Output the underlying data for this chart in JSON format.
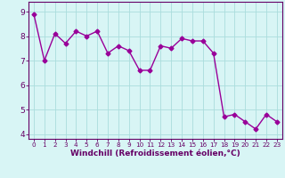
{
  "x": [
    0,
    1,
    2,
    3,
    4,
    5,
    6,
    7,
    8,
    9,
    10,
    11,
    12,
    13,
    14,
    15,
    16,
    17,
    18,
    19,
    20,
    21,
    22,
    23
  ],
  "y": [
    8.9,
    7.0,
    8.1,
    7.7,
    8.2,
    8.0,
    8.2,
    7.3,
    7.6,
    7.4,
    6.6,
    6.6,
    7.6,
    7.5,
    7.9,
    7.8,
    7.8,
    7.3,
    4.7,
    4.8,
    4.5,
    4.2,
    4.8,
    4.5
  ],
  "line_color": "#990099",
  "marker": "D",
  "marker_size": 2.5,
  "linewidth": 1.0,
  "xlabel": "Windchill (Refroidissement éolien,°C)",
  "xlabel_fontsize": 6.5,
  "bg_color": "#d8f5f5",
  "grid_color": "#aadddd",
  "tick_color": "#660066",
  "spine_color": "#660066",
  "ylim": [
    3.8,
    9.4
  ],
  "xlim": [
    -0.5,
    23.5
  ],
  "yticks": [
    4,
    5,
    6,
    7,
    8,
    9
  ],
  "xticks": [
    0,
    1,
    2,
    3,
    4,
    5,
    6,
    7,
    8,
    9,
    10,
    11,
    12,
    13,
    14,
    15,
    16,
    17,
    18,
    19,
    20,
    21,
    22,
    23
  ],
  "ytick_fontsize": 6.5,
  "xtick_fontsize": 5.2
}
